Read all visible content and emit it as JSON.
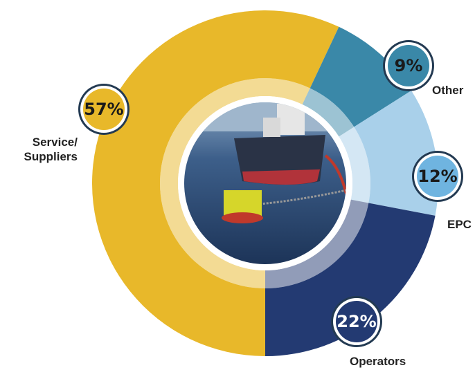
{
  "chart_data": {
    "type": "donut",
    "categories": [
      "Service/ Suppliers",
      "Other",
      "EPC",
      "Operators"
    ],
    "values": [
      57,
      9,
      12,
      22
    ],
    "value_labels": [
      "57%",
      "9%",
      "12%",
      "22%"
    ],
    "colors": [
      "#e8b82a",
      "#3a88a8",
      "#a9d0ea",
      "#233a72"
    ]
  }
}
